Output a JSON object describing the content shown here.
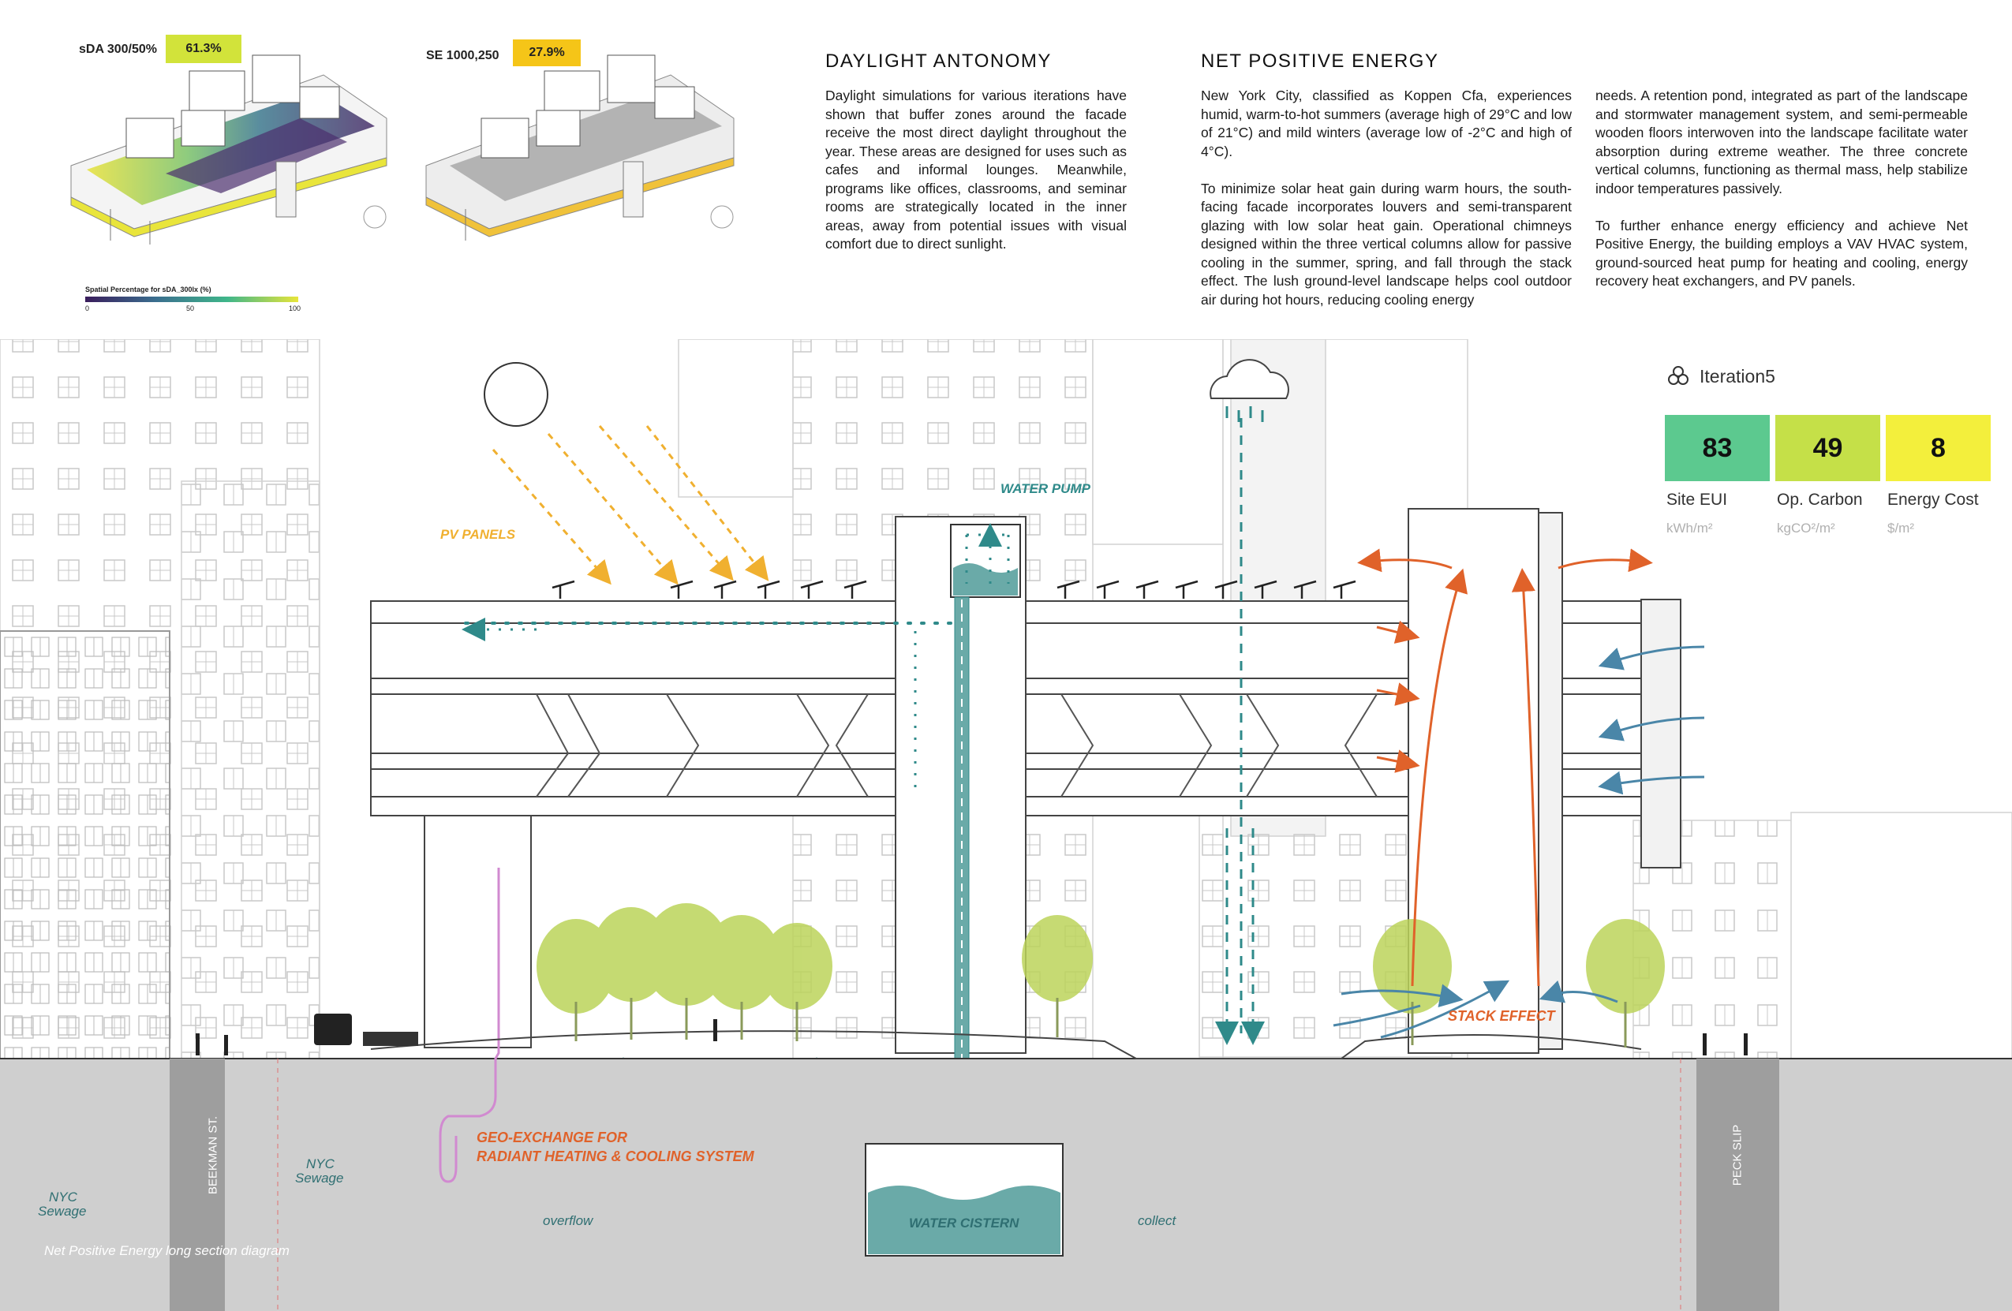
{
  "sda": {
    "label": "sDA 300/50%",
    "value": "61.3%",
    "value_color": "#d2e33a",
    "legend_title": "Spatial Percentage for sDA_300lx (%)",
    "legend_ticks": [
      "0",
      "50",
      "100"
    ]
  },
  "se": {
    "label": "SE 1000,250",
    "value": "27.9%",
    "value_color": "#f5c518"
  },
  "daylight": {
    "title": "DAYLIGHT ANTONOMY",
    "body": "Daylight simulations for various iterations have shown that buffer zones around the facade receive the most direct daylight throughout the year. These areas are designed for uses such as cafes and informal lounges. Meanwhile, programs like offices, classrooms, and seminar rooms are strategically located in the inner areas, away from potential issues with visual comfort due to direct sunlight."
  },
  "energy": {
    "title": "NET POSITIVE ENERGY",
    "col1": "New York City, classified as Koppen Cfa, experiences humid, warm-to-hot summers (average high of 29°C and low of 21°C) and mild winters (average low of -2°C and high of 4°C).\n\nTo minimize solar heat gain during warm hours, the south-facing facade incorporates louvers and semi-transparent glazing with low solar heat gain. Operational chimneys designed within the three vertical columns allow for passive cooling in the summer, spring, and fall through the stack effect. The lush ground-level landscape helps cool outdoor air during hot hours, reducing cooling energy",
    "col2": "needs. A retention pond, integrated as part of the landscape and stormwater management system, and semi-permeable wooden floors interwoven into the landscape facilitate water absorption during extreme weather. The three concrete vertical columns, functioning as thermal mass, help stabilize indoor temperatures passively.\n\nTo further enhance energy efficiency and achieve Net Positive Energy, the building employs a VAV HVAC system, ground-sourced heat pump for heating and cooling, energy recovery heat exchangers, and PV panels."
  },
  "iteration": {
    "name": "Iteration5",
    "metrics": [
      {
        "value": "83",
        "label": "Site EUI",
        "unit": "kWh/m²",
        "color": "#5cc98f"
      },
      {
        "value": "49",
        "label": "Op. Carbon",
        "unit": "kgCO²/m²",
        "color": "#c5e048"
      },
      {
        "value": "8",
        "label": "Energy Cost",
        "unit": "$/m²",
        "color": "#f3ef3c"
      }
    ]
  },
  "labels": {
    "pv_panels": "PV PANELS",
    "water_pump": "WATER PUMP",
    "stack_effect": "STACK EFFECT",
    "geo_line1": "GEO-EXCHANGE FOR",
    "geo_line2": "RADIANT HEATING & COOLING SYSTEM",
    "water_cistern": "WATER CISTERN",
    "overflow": "overflow",
    "collect": "collect",
    "nyc_sewage_1": "NYC",
    "nyc_sewage_2": "Sewage",
    "beekman": "BEEKMAN ST.",
    "peck": "PECK SLIP",
    "caption": "Net Positive Energy long section diagram"
  },
  "colors": {
    "water": "#2f8a8a",
    "sun_arrow": "#f0b030",
    "heat_arrow": "#e0622a",
    "cool_arrow": "#4a86a8",
    "ground": "#cfcfcf",
    "tree": "#bcd45a"
  }
}
